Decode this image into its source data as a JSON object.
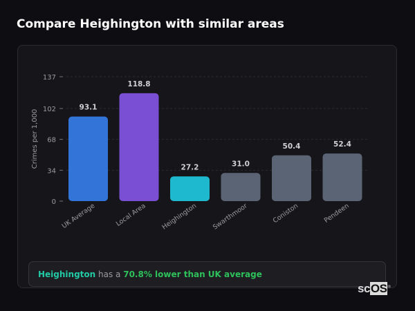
{
  "title": "Compare Heighington with similar areas",
  "chart_data": {
    "type": "bar",
    "ylabel": "Crimes per 1,000",
    "xlabel": "",
    "ylim": [
      0,
      137
    ],
    "yticks": [
      0,
      34,
      68,
      102,
      137
    ],
    "grid": true,
    "categories": [
      "UK Average",
      "Local Area",
      "Heighington",
      "Swarthmoor",
      "Coniston",
      "Pendeen"
    ],
    "values": [
      93.1,
      118.8,
      27.2,
      31.0,
      50.4,
      52.4
    ],
    "value_labels": [
      "93.1",
      "118.8",
      "27.2",
      "31.0",
      "50.4",
      "52.4"
    ],
    "colors": [
      "#3374d9",
      "#7b4fd3",
      "#1fb9cf",
      "#5b6475",
      "#5b6475",
      "#5b6475"
    ]
  },
  "summary": {
    "area": "Heighington",
    "middle": " has a ",
    "comparison": "70.8% lower than UK average"
  },
  "logo": {
    "text_sc": "sc",
    "text_os": "OS",
    "mark": "®"
  }
}
